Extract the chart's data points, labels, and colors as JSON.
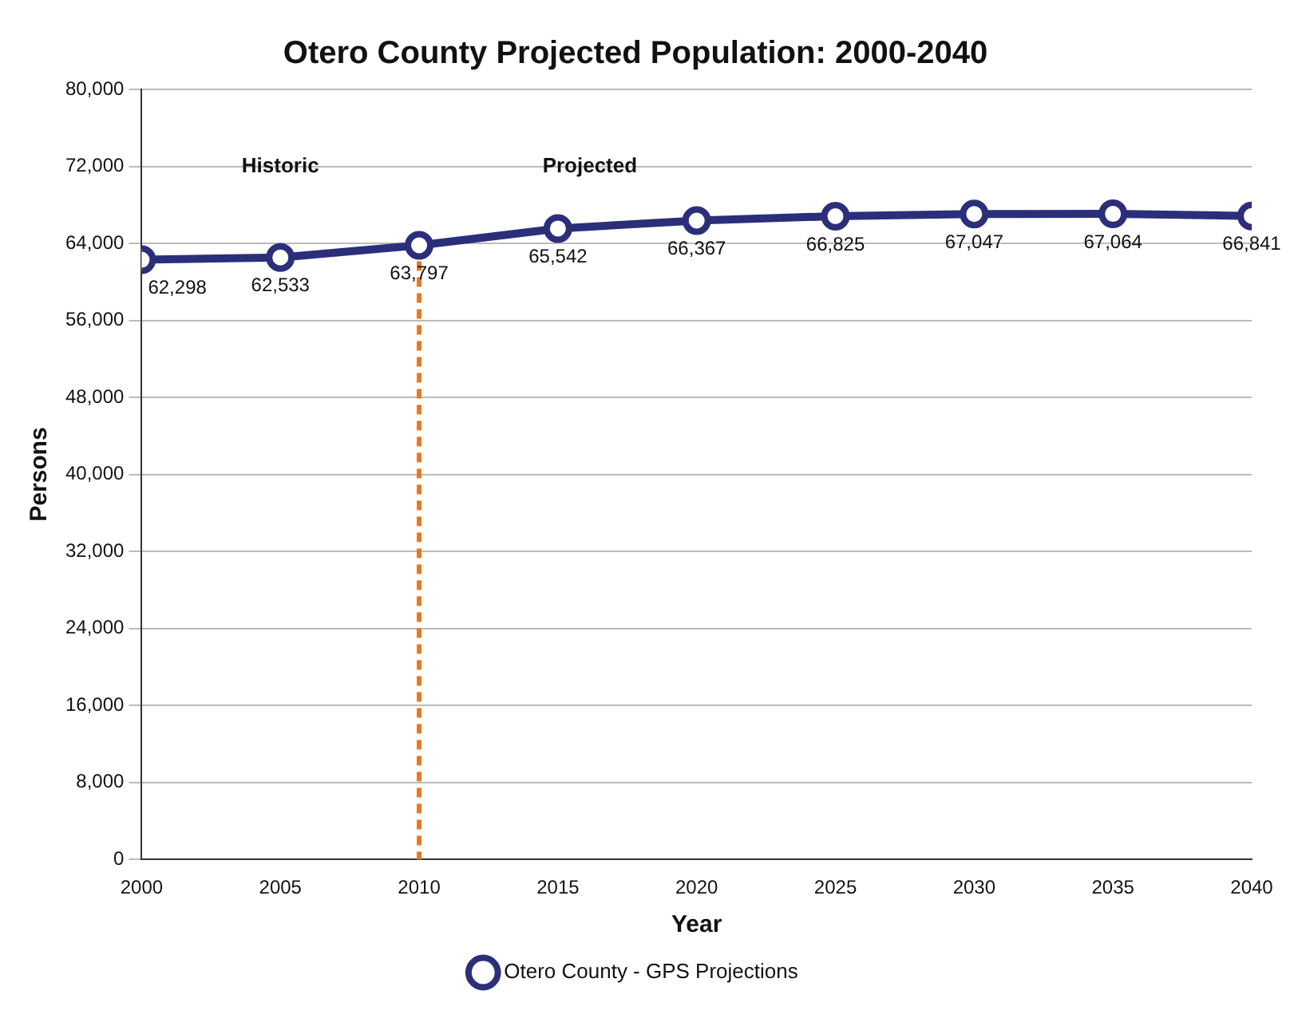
{
  "chart_data": {
    "type": "line",
    "title": "Otero County Projected Population: 2000-2040",
    "xlabel": "Year",
    "ylabel": "Persons",
    "x": [
      2000,
      2005,
      2010,
      2015,
      2020,
      2025,
      2030,
      2035,
      2040
    ],
    "series": [
      {
        "name": "Otero County - GPS Projections",
        "color": "#2b2f7a",
        "values": [
          62298,
          62533,
          63797,
          65542,
          66367,
          66825,
          67047,
          67064,
          66841
        ],
        "value_labels": [
          "62,298",
          "62,533",
          "63,797",
          "65,542",
          "66,367",
          "66,825",
          "67,047",
          "67,064",
          "66,841"
        ]
      }
    ],
    "xlim": [
      2000,
      2040
    ],
    "xticks": [
      2000,
      2005,
      2010,
      2015,
      2020,
      2025,
      2030,
      2035,
      2040
    ],
    "ylim": [
      0,
      80000
    ],
    "yticks": [
      0,
      {
        "value": 8000,
        "label": "8,000"
      },
      {
        "value": 16000,
        "label": "16,000"
      },
      {
        "value": 24000,
        "label": "24,000"
      },
      {
        "value": 32000,
        "label": "32,000"
      },
      {
        "value": 40000,
        "label": "40,000"
      },
      {
        "value": 48000,
        "label": "48,000"
      },
      {
        "value": 56000,
        "label": "56,000"
      },
      {
        "value": 64000,
        "label": "64,000"
      },
      {
        "value": 72000,
        "label": "72,000"
      },
      {
        "value": 80000,
        "label": "80,000"
      }
    ],
    "grid": "y",
    "legend": "bottom",
    "marker": "circle",
    "line_style": "solid",
    "ref_lines": [
      {
        "axis": "x",
        "value": 2010,
        "color": "#e07b2a",
        "line_style": "dashed"
      }
    ],
    "annotations": [
      "Historic",
      "Projected"
    ]
  }
}
